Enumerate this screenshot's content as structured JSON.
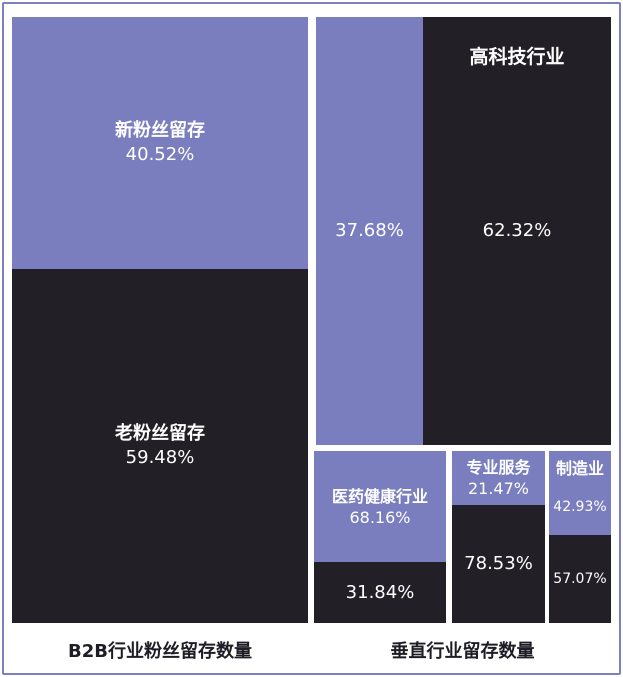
{
  "colors": {
    "light": "#7a7ebe",
    "dark": "#221f26",
    "border": "#7d7fc0"
  },
  "chart_data": {
    "type": "treemap",
    "groups": [
      {
        "name": "B2B行业粉丝留存数量",
        "cells": [
          {
            "label": "新粉丝留存",
            "value": "40.52%"
          },
          {
            "label": "老粉丝留存",
            "value": "59.48%"
          }
        ]
      },
      {
        "name": "垂直行业留存数量",
        "segments": [
          {
            "name": "高科技行业",
            "values": [
              "37.68%",
              "62.32%"
            ]
          },
          {
            "name": "医药健康行业",
            "values": [
              "68.16%",
              "31.84%"
            ]
          },
          {
            "name": "专业服务",
            "values": [
              "21.47%",
              "78.53%"
            ]
          },
          {
            "name": "制造业",
            "values": [
              "42.93%",
              "57.07%"
            ]
          }
        ]
      }
    ]
  }
}
